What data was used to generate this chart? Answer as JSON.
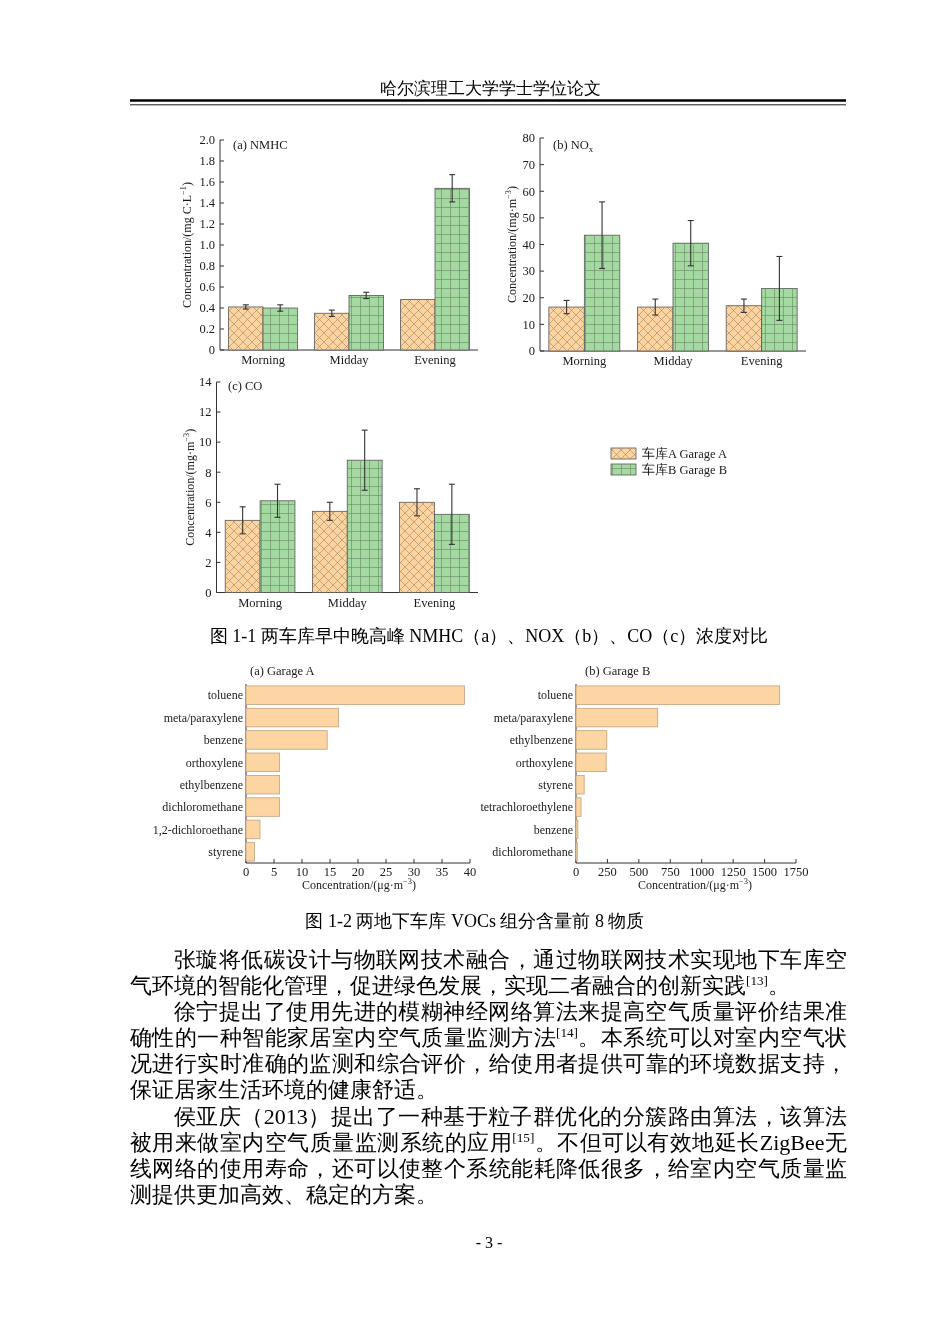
{
  "chart_data": [
    {
      "type": "bar",
      "title": "(a) NMHC",
      "ylabel": "Concentration/(mg C·L$^{−1}$)",
      "categories": [
        "Morning",
        "Midday",
        "Evening"
      ],
      "series": [
        {
          "color": "#fdd49f",
          "values": [
            0.41,
            0.35,
            0.48
          ],
          "errors": [
            0.02,
            0.03,
            null
          ]
        },
        {
          "color": "#a4d9a1",
          "values": [
            0.4,
            0.52,
            1.54
          ],
          "errors": [
            0.03,
            0.03,
            0.13
          ]
        }
      ],
      "ylim": [
        0,
        2
      ],
      "yticks": [
        0,
        0.2,
        0.4,
        0.6,
        0.8,
        {
          "value": 1,
          "label": "1.0"
        },
        1.2,
        1.4,
        1.6,
        1.8,
        {
          "value": 2,
          "label": "2.0"
        }
      ],
      "annotations": [
        "哈尔滨理工大学学士学位论文"
      ]
    },
    {
      "type": "bar",
      "title": "(b) NO$_{x}$",
      "ylabel": "Concentration/(mg·m$^{−3}$)",
      "categories": [
        "Morning",
        "Midday",
        "Evening"
      ],
      "series": [
        {
          "color": "#fdd49f",
          "values": [
            16.5,
            16.5,
            17
          ],
          "errors": [
            2.5,
            3,
            2.5
          ]
        },
        {
          "color": "#a4d9a1",
          "values": [
            43.5,
            40.5,
            23.5
          ],
          "errors": [
            12.5,
            8.5,
            12
          ]
        }
      ],
      "ylim": [
        0,
        80
      ],
      "yticks": [
        0,
        10,
        20,
        30,
        40,
        50,
        60,
        70,
        80
      ]
    },
    {
      "type": "bar",
      "title": "(c) CO",
      "ylabel": "Concentration/(mg·m$^{−3}$)",
      "categories": [
        "Morning",
        "Midday",
        "Evening"
      ],
      "series": [
        {
          "name": "车库A Garage A",
          "color": "#fdd49f",
          "values": [
            4.8,
            5.4,
            6.0
          ],
          "errors": [
            0.9,
            0.6,
            0.9
          ]
        },
        {
          "name": "车库B Garage B",
          "color": "#a4d9a1",
          "values": [
            6.1,
            8.8,
            5.2
          ],
          "errors": [
            1.1,
            2.0,
            2.0
          ]
        }
      ],
      "ylim": [
        0,
        14
      ],
      "yticks": [
        0,
        2,
        4,
        6,
        8,
        10,
        12,
        14
      ],
      "legend": "right",
      "annotations": [
        "图 1-1 两车库早中晚高峰 NMHC（a）、NOX（b）、CO（c）浓度对比"
      ]
    },
    {
      "type": "bar",
      "orientation": "horizontal",
      "title": "(a) Garage A",
      "xlabel": "Concentration/(μg·m$^{−3}$)",
      "categories": [
        "toluene",
        "meta/paraxylene",
        "benzene",
        "orthoxylene",
        "ethylbenzene",
        "dichloromethane",
        "1,2-dichloroethane",
        "styrene"
      ],
      "values": [
        39,
        16.5,
        14.5,
        6,
        6,
        6,
        2.5,
        1.5
      ],
      "color": "#fcd5a2",
      "xlim": [
        0,
        40
      ],
      "xticks": [
        0,
        5,
        10,
        15,
        20,
        25,
        30,
        35,
        40
      ]
    },
    {
      "type": "bar",
      "orientation": "horizontal",
      "title": "(b) Garage B",
      "xlabel": "Concentration/(μg·m$^{−3}$)",
      "categories": [
        "toluene",
        "meta/paraxylene",
        "ethylbenzene",
        "orthoxylene",
        "styrene",
        "tetrachloroethylene",
        "benzene",
        "dichloromethane"
      ],
      "values": [
        1620,
        650,
        245,
        240,
        65,
        40,
        15,
        10
      ],
      "color": "#fcd5a2",
      "xlim": [
        0,
        1750
      ],
      "xticks": [
        0,
        250,
        500,
        750,
        1000,
        1250,
        1500,
        1750
      ],
      "annotations": [
        "图 1-2 两地下车库 VOCs 组分含量前 8 物质",
        "张璇将低碳设计与物联网技术融合，通过物联网技术实现地下车库空气环境的智能化管理，促进绿色发展，实现二者融合的创新实践$^{[13]}$。",
        "徐宁提出了使用先进的模糊神经网络算法来提高空气质量评价结果准确性的一种智能家居室内空气质量监测方法$^{[14]}$。本系统可以对室内空气状况进行实时准确的监测和综合评价，给使用者提供可靠的环境数据支持，保证居家生活环境的健康舒适。",
        "侯亚庆（2013）提出了一种基于粒子群优化的分簇路由算法，该算法被用来做室内空气质量监测系统的应用$^{[15]}$。不但可以有效地延长ZigBee无线网络的使用寿命，还可以使整个系统能耗降低很多，给室内空气质量监测提供更加高效、稳定的方案。",
        "- 3 -"
      ]
    }
  ]
}
